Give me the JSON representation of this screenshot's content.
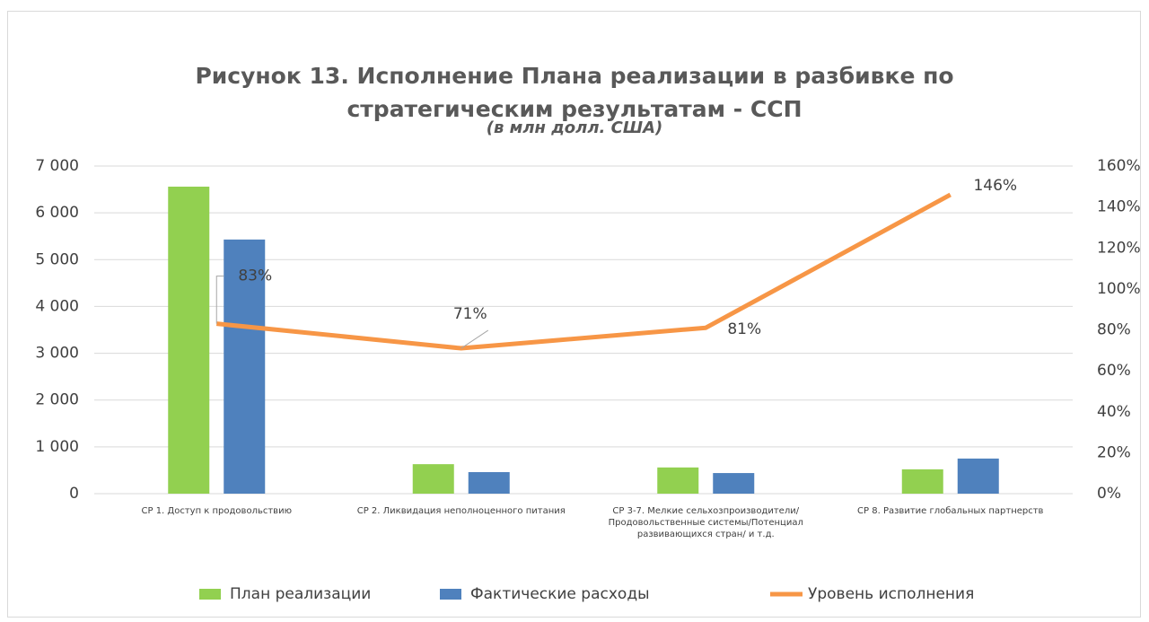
{
  "chart_data": {
    "type": "bar_line",
    "title": "Рисунок 13. Исполнение Плана реализации в разбивке по стратегическим результатам  - ССП",
    "subtitle": "(в млн долл. США)",
    "categories": [
      "СР 1. Доступ к продовольствию",
      "СР 2. Ликвидация неполноценного питания",
      "СР 3-7. Мелкие сельхозпроизводители/Продовольственные системы/Потенциал развивающихся стран/ и т.д.",
      "СР 8. Развитие глобальных партнерств"
    ],
    "series": [
      {
        "name": "План реализации",
        "color": "#92d050",
        "type": "bar",
        "values": [
          6560,
          630,
          560,
          520
        ]
      },
      {
        "name": "Фактические расходы",
        "color": "#4f81bd",
        "type": "bar",
        "values": [
          5430,
          460,
          440,
          750
        ]
      },
      {
        "name": "Уровень исполнения",
        "color": "#f79646",
        "type": "line",
        "axis": "y2",
        "values": [
          83,
          71,
          81,
          146
        ],
        "value_labels": [
          "83%",
          "71%",
          "81%",
          "146%"
        ]
      }
    ],
    "ylim": [
      0,
      7000
    ],
    "yticks": [
      0,
      {
        "value": 1000,
        "label": "1 000"
      },
      {
        "value": 2000,
        "label": "2 000"
      },
      {
        "value": 3000,
        "label": "3 000"
      },
      {
        "value": 4000,
        "label": "4 000"
      },
      {
        "value": 5000,
        "label": "5 000"
      },
      {
        "value": 6000,
        "label": "6 000"
      },
      {
        "value": 7000,
        "label": "7 000"
      }
    ],
    "y2lim": [
      0,
      160
    ],
    "y2ticks": [
      {
        "value": 0,
        "label": "0%"
      },
      {
        "value": 20,
        "label": "20%"
      },
      {
        "value": 40,
        "label": "40%"
      },
      {
        "value": 60,
        "label": "60%"
      },
      {
        "value": 80,
        "label": "80%"
      },
      {
        "value": 100,
        "label": "100%"
      },
      {
        "value": 120,
        "label": "120%"
      },
      {
        "value": 140,
        "label": "140%"
      },
      {
        "value": 160,
        "label": "160%"
      }
    ],
    "grid": true,
    "legend": "bottom"
  }
}
